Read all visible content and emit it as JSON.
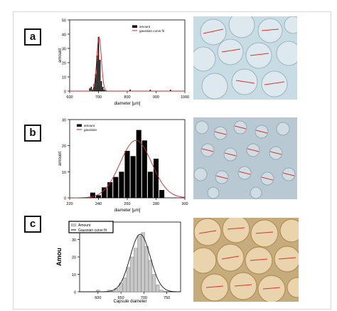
{
  "panels": [
    {
      "label": "a"
    },
    {
      "label": "b"
    },
    {
      "label": "c"
    }
  ],
  "chart_data": [
    {
      "type": "bar",
      "panel": "a",
      "xlabel": "diameter [µm]",
      "ylabel": "amount",
      "xlim": [
        600,
        1000
      ],
      "ylim": [
        0,
        50
      ],
      "xticks": [
        "600",
        "700",
        "800",
        "900",
        "1000"
      ],
      "yticks": [
        "0",
        "10",
        "20",
        "30",
        "40",
        "50"
      ],
      "legend": [
        "amount",
        "gaussian curve fit"
      ],
      "legend_position": "top-right",
      "bar_width": 4,
      "x": [
        670,
        675,
        680,
        685,
        690,
        695,
        700,
        705,
        710,
        715,
        720,
        810,
        880,
        950
      ],
      "values": [
        2,
        3,
        1,
        5,
        12,
        25,
        38,
        22,
        7,
        3,
        1,
        1,
        1,
        1
      ],
      "fit": {
        "mean": 702,
        "sigma": 8,
        "peak": 38
      },
      "colors": {
        "bars": "#000000",
        "fit": "#c62828"
      }
    },
    {
      "type": "bar",
      "panel": "b",
      "xlabel": "diameter [µm]",
      "ylabel": "amount",
      "xlim": [
        220,
        300
      ],
      "ylim": [
        0,
        30
      ],
      "xticks": [
        "220",
        "240",
        "260",
        "280",
        "300"
      ],
      "yticks": [
        "0",
        "10",
        "20",
        "30"
      ],
      "legend": [
        "amount",
        "gaussian"
      ],
      "legend_position": "top-left",
      "bar_width": 3.5,
      "x": [
        236,
        240,
        244,
        248,
        252,
        256,
        260,
        264,
        268,
        272,
        276,
        280,
        284
      ],
      "values": [
        2,
        1,
        4,
        6,
        8,
        10,
        18,
        16,
        26,
        22,
        10,
        15,
        3
      ],
      "fit": {
        "mean": 266,
        "sigma": 11,
        "peak": 22
      },
      "colors": {
        "bars": "#000000",
        "fit": "#c62828"
      }
    },
    {
      "type": "bar",
      "panel": "c",
      "xlabel": "Capsule diameter",
      "ylabel": "Amou",
      "xlim": [
        560,
        780
      ],
      "ylim": [
        0,
        40
      ],
      "xticks": [
        "600",
        "650",
        "700",
        "750"
      ],
      "yticks": [
        "0",
        "10",
        "20",
        "30",
        "40"
      ],
      "legend": [
        "Amount",
        "Gaussian curve fit"
      ],
      "legend_position": "top-left",
      "bar_width": 7.5,
      "x": [
        600,
        625,
        640,
        650,
        658,
        666,
        674,
        682,
        690,
        698,
        706,
        714,
        722,
        730,
        738
      ],
      "values": [
        1,
        1,
        2,
        5,
        8,
        14,
        20,
        25,
        32,
        34,
        26,
        18,
        10,
        4,
        1
      ],
      "fit": {
        "mean": 692,
        "sigma": 22,
        "peak": 33
      },
      "colors": {
        "bars": "#c8c8c8",
        "bar_stroke": "#8a8a8a",
        "fit": "#111111"
      }
    }
  ]
}
